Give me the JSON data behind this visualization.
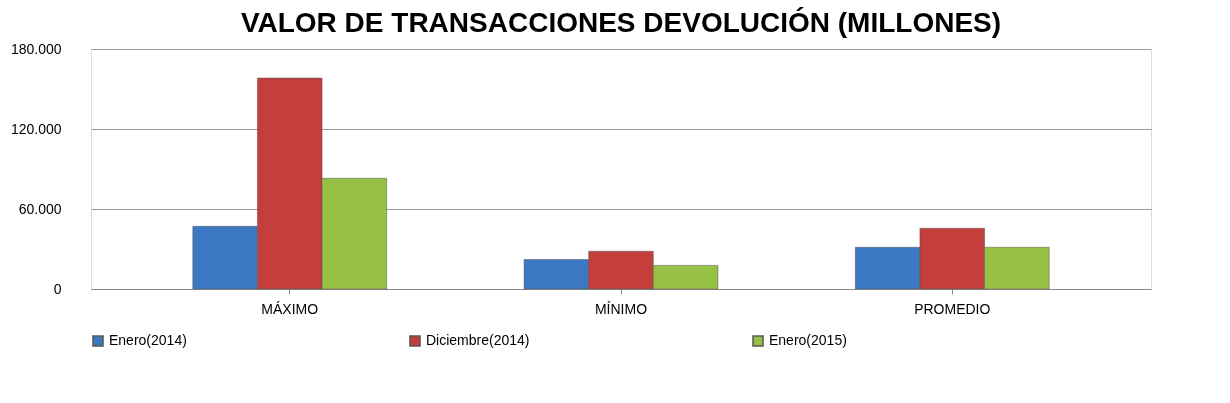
{
  "chart_data": {
    "type": "bar",
    "title": "VALOR DE TRANSACCIONES DEVOLUCIÓN (MILLONES)",
    "categories": [
      "MÁXIMO",
      "MÍNIMO",
      "PROMEDIO"
    ],
    "series": [
      {
        "name": "Enero(2014)",
        "color": "#3c78c4",
        "values": [
          47000,
          22100,
          31300
        ]
      },
      {
        "name": "Diciembre(2014)",
        "color": "#c43f3b",
        "values": [
          158200,
          28300,
          45600
        ]
      },
      {
        "name": "Enero(2015)",
        "color": "#96c145",
        "values": [
          83000,
          17700,
          31300
        ]
      }
    ],
    "ylim": [
      0,
      180000
    ],
    "yticks": [
      {
        "value": 0,
        "label": "0"
      },
      {
        "value": 60000,
        "label": "60.000"
      },
      {
        "value": 120000,
        "label": "120.000"
      },
      {
        "value": 180000,
        "label": "180.000"
      }
    ],
    "grid": "y",
    "legend": "bottom"
  }
}
